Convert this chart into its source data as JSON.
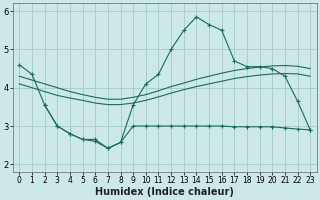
{
  "xlabel": "Humidex (Indice chaleur)",
  "bg_color": "#cce8e8",
  "line_color": "#1a6b5a",
  "grid_color": "#aacece",
  "xlim": [
    -0.5,
    23.5
  ],
  "ylim": [
    1.8,
    6.2
  ],
  "yticks": [
    2,
    3,
    4,
    5,
    6
  ],
  "xticks": [
    0,
    1,
    2,
    3,
    4,
    5,
    6,
    7,
    8,
    9,
    10,
    11,
    12,
    13,
    14,
    15,
    16,
    17,
    18,
    19,
    20,
    21,
    22,
    23
  ],
  "line1_x": [
    0,
    1,
    2,
    3,
    4,
    5,
    6,
    7,
    8,
    9,
    10,
    11,
    12,
    13,
    14,
    15,
    16,
    17,
    18,
    19,
    20,
    21,
    22,
    23
  ],
  "line1_y": [
    4.6,
    4.35,
    3.55,
    3.0,
    2.8,
    2.65,
    2.6,
    2.42,
    2.57,
    3.55,
    4.1,
    4.35,
    5.0,
    5.5,
    5.85,
    5.65,
    5.5,
    4.7,
    4.55,
    4.55,
    4.5,
    4.3,
    3.65,
    2.9
  ],
  "line2_x": [
    0,
    1,
    2,
    3,
    4,
    5,
    6,
    7,
    8,
    9,
    10,
    11,
    12,
    13,
    14,
    15,
    16,
    17,
    18,
    19,
    20,
    21,
    22,
    23
  ],
  "line2_y": [
    4.3,
    4.2,
    4.1,
    4.0,
    3.9,
    3.82,
    3.75,
    3.7,
    3.7,
    3.75,
    3.82,
    3.92,
    4.03,
    4.12,
    4.22,
    4.3,
    4.38,
    4.45,
    4.5,
    4.54,
    4.57,
    4.58,
    4.56,
    4.5
  ],
  "line3_x": [
    0,
    1,
    2,
    3,
    4,
    5,
    6,
    7,
    8,
    9,
    10,
    11,
    12,
    13,
    14,
    15,
    16,
    17,
    18,
    19,
    20,
    21,
    22,
    23
  ],
  "line3_y": [
    4.1,
    4.0,
    3.9,
    3.8,
    3.73,
    3.67,
    3.6,
    3.56,
    3.56,
    3.6,
    3.67,
    3.76,
    3.86,
    3.95,
    4.03,
    4.1,
    4.17,
    4.24,
    4.29,
    4.33,
    4.36,
    4.37,
    4.36,
    4.3
  ],
  "line4_x": [
    2,
    3,
    4,
    5,
    6,
    7,
    8,
    9,
    10,
    11,
    12,
    13,
    14,
    15,
    16,
    17,
    18,
    19,
    20,
    21,
    22,
    23
  ],
  "line4_y": [
    3.55,
    3.0,
    2.8,
    2.65,
    2.65,
    2.42,
    2.57,
    3.0,
    3.0,
    3.0,
    3.0,
    3.0,
    3.0,
    3.0,
    3.0,
    2.98,
    2.98,
    2.98,
    2.98,
    2.95,
    2.92,
    2.9
  ]
}
